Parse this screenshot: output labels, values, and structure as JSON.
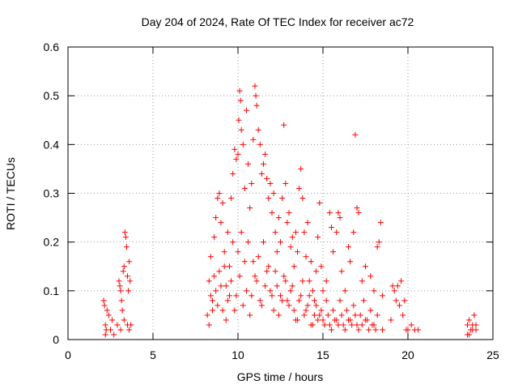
{
  "chart_data": {
    "type": "scatter",
    "title": "Day 204 of 2024, Rate Of TEC Index for receiver ac72",
    "xlabel": "GPS time / hours",
    "ylabel": "ROTI / TECUs",
    "xlim": [
      0,
      25
    ],
    "ylim": [
      0,
      0.6
    ],
    "xticks": [
      0,
      5,
      10,
      15,
      20,
      25
    ],
    "yticks": [
      0,
      0.1,
      0.2,
      0.3,
      0.4,
      0.5,
      0.6
    ],
    "xtick_labels": [
      "0",
      "5",
      "10",
      "15",
      "20",
      "25"
    ],
    "ytick_labels": [
      "0",
      "0.1",
      "0.2",
      "0.3",
      "0.4",
      "0.5",
      "0.6"
    ],
    "grid": true,
    "marker": "+",
    "colors": {
      "series": "#ff0000",
      "grid": "#999999",
      "axis": "#000000"
    },
    "series": [
      {
        "values": [
          [
            2.1,
            0.08
          ],
          [
            2.15,
            0.07
          ],
          [
            2.2,
            0.03
          ],
          [
            2.25,
            0.02
          ],
          [
            2.3,
            0.06
          ],
          [
            2.4,
            0.05
          ],
          [
            2.5,
            0.02
          ],
          [
            2.6,
            0.04
          ],
          [
            2.7,
            0.01
          ],
          [
            2.2,
            0.01
          ],
          [
            2.9,
            0.03
          ],
          [
            3.0,
            0.12
          ],
          [
            3.05,
            0.11
          ],
          [
            3.1,
            0.1
          ],
          [
            3.15,
            0.08
          ],
          [
            3.2,
            0.06
          ],
          [
            3.25,
            0.14
          ],
          [
            3.3,
            0.15
          ],
          [
            3.35,
            0.22
          ],
          [
            3.4,
            0.21
          ],
          [
            3.45,
            0.19
          ],
          [
            3.5,
            0.13
          ],
          [
            3.55,
            0.1
          ],
          [
            3.6,
            0.16
          ],
          [
            3.65,
            0.12
          ],
          [
            3.7,
            0.03
          ],
          [
            3.1,
            0.02
          ],
          [
            3.3,
            0.04
          ],
          [
            3.5,
            0.03
          ],
          [
            3.6,
            0.02
          ],
          [
            8.2,
            0.05
          ],
          [
            8.3,
            0.12
          ],
          [
            8.4,
            0.17
          ],
          [
            8.5,
            0.08
          ],
          [
            8.6,
            0.21
          ],
          [
            8.7,
            0.25
          ],
          [
            8.8,
            0.29
          ],
          [
            8.9,
            0.3
          ],
          [
            9.0,
            0.24
          ],
          [
            9.1,
            0.28
          ],
          [
            9.2,
            0.18
          ],
          [
            9.3,
            0.11
          ],
          [
            9.4,
            0.22
          ],
          [
            9.5,
            0.09
          ],
          [
            9.6,
            0.29
          ],
          [
            9.7,
            0.34
          ],
          [
            9.8,
            0.39
          ],
          [
            9.9,
            0.37
          ],
          [
            10.0,
            0.38
          ],
          [
            10.05,
            0.45
          ],
          [
            10.1,
            0.51
          ],
          [
            10.15,
            0.49
          ],
          [
            10.2,
            0.43
          ],
          [
            10.3,
            0.4
          ],
          [
            10.4,
            0.31
          ],
          [
            10.5,
            0.47
          ],
          [
            10.6,
            0.36
          ],
          [
            10.7,
            0.27
          ],
          [
            10.8,
            0.32
          ],
          [
            10.9,
            0.41
          ],
          [
            11.0,
            0.52
          ],
          [
            11.05,
            0.5
          ],
          [
            11.1,
            0.48
          ],
          [
            11.2,
            0.43
          ],
          [
            11.3,
            0.4
          ],
          [
            11.4,
            0.34
          ],
          [
            11.5,
            0.36
          ],
          [
            11.6,
            0.38
          ],
          [
            11.7,
            0.33
          ],
          [
            11.8,
            0.29
          ],
          [
            11.9,
            0.32
          ],
          [
            12.0,
            0.26
          ],
          [
            12.1,
            0.3
          ],
          [
            12.2,
            0.22
          ],
          [
            12.3,
            0.18
          ],
          [
            12.4,
            0.25
          ],
          [
            12.5,
            0.2
          ],
          [
            12.6,
            0.29
          ],
          [
            12.7,
            0.44
          ],
          [
            12.8,
            0.32
          ],
          [
            12.9,
            0.24
          ],
          [
            13.0,
            0.26
          ],
          [
            13.1,
            0.19
          ],
          [
            13.2,
            0.21
          ],
          [
            13.3,
            0.15
          ],
          [
            13.4,
            0.22
          ],
          [
            13.5,
            0.18
          ],
          [
            13.6,
            0.31
          ],
          [
            13.7,
            0.35
          ],
          [
            13.8,
            0.29
          ],
          [
            13.9,
            0.22
          ],
          [
            14.0,
            0.17
          ],
          [
            14.1,
            0.24
          ],
          [
            14.2,
            0.12
          ],
          [
            14.3,
            0.16
          ],
          [
            14.4,
            0.1
          ],
          [
            14.5,
            0.08
          ],
          [
            14.6,
            0.14
          ],
          [
            14.7,
            0.21
          ],
          [
            14.8,
            0.28
          ],
          [
            14.9,
            0.15
          ],
          [
            15.0,
            0.1
          ],
          [
            15.2,
            0.12
          ],
          [
            15.4,
            0.26
          ],
          [
            15.5,
            0.23
          ],
          [
            15.6,
            0.18
          ],
          [
            15.8,
            0.22
          ],
          [
            15.9,
            0.26
          ],
          [
            16.0,
            0.25
          ],
          [
            16.1,
            0.14
          ],
          [
            16.3,
            0.1
          ],
          [
            16.5,
            0.19
          ],
          [
            16.6,
            0.16
          ],
          [
            16.8,
            0.22
          ],
          [
            16.9,
            0.42
          ],
          [
            17.0,
            0.27
          ],
          [
            17.1,
            0.26
          ],
          [
            17.3,
            0.12
          ],
          [
            17.5,
            0.15
          ],
          [
            17.8,
            0.13
          ],
          [
            18.0,
            0.1
          ],
          [
            18.2,
            0.19
          ],
          [
            18.3,
            0.2
          ],
          [
            18.4,
            0.24
          ],
          [
            18.5,
            0.09
          ],
          [
            19.0,
            0.04
          ],
          [
            19.1,
            0.11
          ],
          [
            19.2,
            0.1
          ],
          [
            19.3,
            0.08
          ],
          [
            19.4,
            0.11
          ],
          [
            19.5,
            0.07
          ],
          [
            19.6,
            0.12
          ],
          [
            19.7,
            0.05
          ],
          [
            19.8,
            0.08
          ],
          [
            19.9,
            0.02
          ],
          [
            20.0,
            0.02
          ],
          [
            20.2,
            0.03
          ],
          [
            20.4,
            0.02
          ],
          [
            20.6,
            0.02
          ],
          [
            18.5,
            0.02
          ],
          [
            23.5,
            0.03
          ],
          [
            23.6,
            0.04
          ],
          [
            23.7,
            0.02
          ],
          [
            23.8,
            0.03
          ],
          [
            23.9,
            0.05
          ],
          [
            24.0,
            0.03
          ],
          [
            23.6,
            0.01
          ],
          [
            23.8,
            0.02
          ],
          [
            24.0,
            0.02
          ],
          [
            23.5,
            0.01
          ],
          [
            8.3,
            0.03
          ],
          [
            8.5,
            0.06
          ],
          [
            8.7,
            0.1
          ],
          [
            8.9,
            0.14
          ],
          [
            9.1,
            0.06
          ],
          [
            9.3,
            0.04
          ],
          [
            9.5,
            0.15
          ],
          [
            9.7,
            0.2
          ],
          [
            9.9,
            0.09
          ],
          [
            10.1,
            0.13
          ],
          [
            10.3,
            0.07
          ],
          [
            10.5,
            0.1
          ],
          [
            10.7,
            0.05
          ],
          [
            10.9,
            0.16
          ],
          [
            11.1,
            0.12
          ],
          [
            11.3,
            0.08
          ],
          [
            11.5,
            0.2
          ],
          [
            11.7,
            0.14
          ],
          [
            11.9,
            0.1
          ],
          [
            12.1,
            0.06
          ],
          [
            12.3,
            0.11
          ],
          [
            12.5,
            0.09
          ],
          [
            12.7,
            0.13
          ],
          [
            12.9,
            0.08
          ],
          [
            13.1,
            0.1
          ],
          [
            13.3,
            0.06
          ],
          [
            13.5,
            0.04
          ],
          [
            13.7,
            0.09
          ],
          [
            13.9,
            0.05
          ],
          [
            14.1,
            0.07
          ],
          [
            14.3,
            0.03
          ],
          [
            14.5,
            0.05
          ],
          [
            14.7,
            0.04
          ],
          [
            14.9,
            0.06
          ],
          [
            15.1,
            0.03
          ],
          [
            15.3,
            0.05
          ],
          [
            15.5,
            0.02
          ],
          [
            15.7,
            0.04
          ],
          [
            15.9,
            0.03
          ],
          [
            16.1,
            0.05
          ],
          [
            16.3,
            0.02
          ],
          [
            16.5,
            0.04
          ],
          [
            16.7,
            0.03
          ],
          [
            16.9,
            0.05
          ],
          [
            17.1,
            0.02
          ],
          [
            17.3,
            0.03
          ],
          [
            17.5,
            0.04
          ],
          [
            17.7,
            0.02
          ],
          [
            17.9,
            0.03
          ],
          [
            18.1,
            0.02
          ],
          [
            8.4,
            0.09
          ],
          [
            8.6,
            0.13
          ],
          [
            8.8,
            0.07
          ],
          [
            9.0,
            0.11
          ],
          [
            9.2,
            0.15
          ],
          [
            9.4,
            0.08
          ],
          [
            9.6,
            0.12
          ],
          [
            9.8,
            0.06
          ],
          [
            10.0,
            0.18
          ],
          [
            10.2,
            0.22
          ],
          [
            10.4,
            0.16
          ],
          [
            10.6,
            0.2
          ],
          [
            10.8,
            0.09
          ],
          [
            11.0,
            0.13
          ],
          [
            11.2,
            0.17
          ],
          [
            11.4,
            0.07
          ],
          [
            11.6,
            0.11
          ],
          [
            11.8,
            0.15
          ],
          [
            12.0,
            0.09
          ],
          [
            12.2,
            0.14
          ],
          [
            12.4,
            0.05
          ],
          [
            12.6,
            0.08
          ],
          [
            12.8,
            0.12
          ],
          [
            13.0,
            0.07
          ],
          [
            13.2,
            0.11
          ],
          [
            13.4,
            0.04
          ],
          [
            13.6,
            0.08
          ],
          [
            13.8,
            0.12
          ],
          [
            14.0,
            0.06
          ],
          [
            14.2,
            0.09
          ],
          [
            14.4,
            0.03
          ],
          [
            14.6,
            0.07
          ],
          [
            14.8,
            0.05
          ],
          [
            15.0,
            0.04
          ],
          [
            15.2,
            0.08
          ],
          [
            15.4,
            0.03
          ],
          [
            15.6,
            0.06
          ],
          [
            15.8,
            0.04
          ],
          [
            16.0,
            0.08
          ],
          [
            16.2,
            0.03
          ],
          [
            16.4,
            0.06
          ],
          [
            16.6,
            0.04
          ],
          [
            16.8,
            0.07
          ],
          [
            17.0,
            0.03
          ],
          [
            17.2,
            0.05
          ],
          [
            17.4,
            0.08
          ],
          [
            17.6,
            0.04
          ],
          [
            17.8,
            0.06
          ],
          [
            18.0,
            0.03
          ],
          [
            18.2,
            0.05
          ]
        ]
      }
    ]
  }
}
